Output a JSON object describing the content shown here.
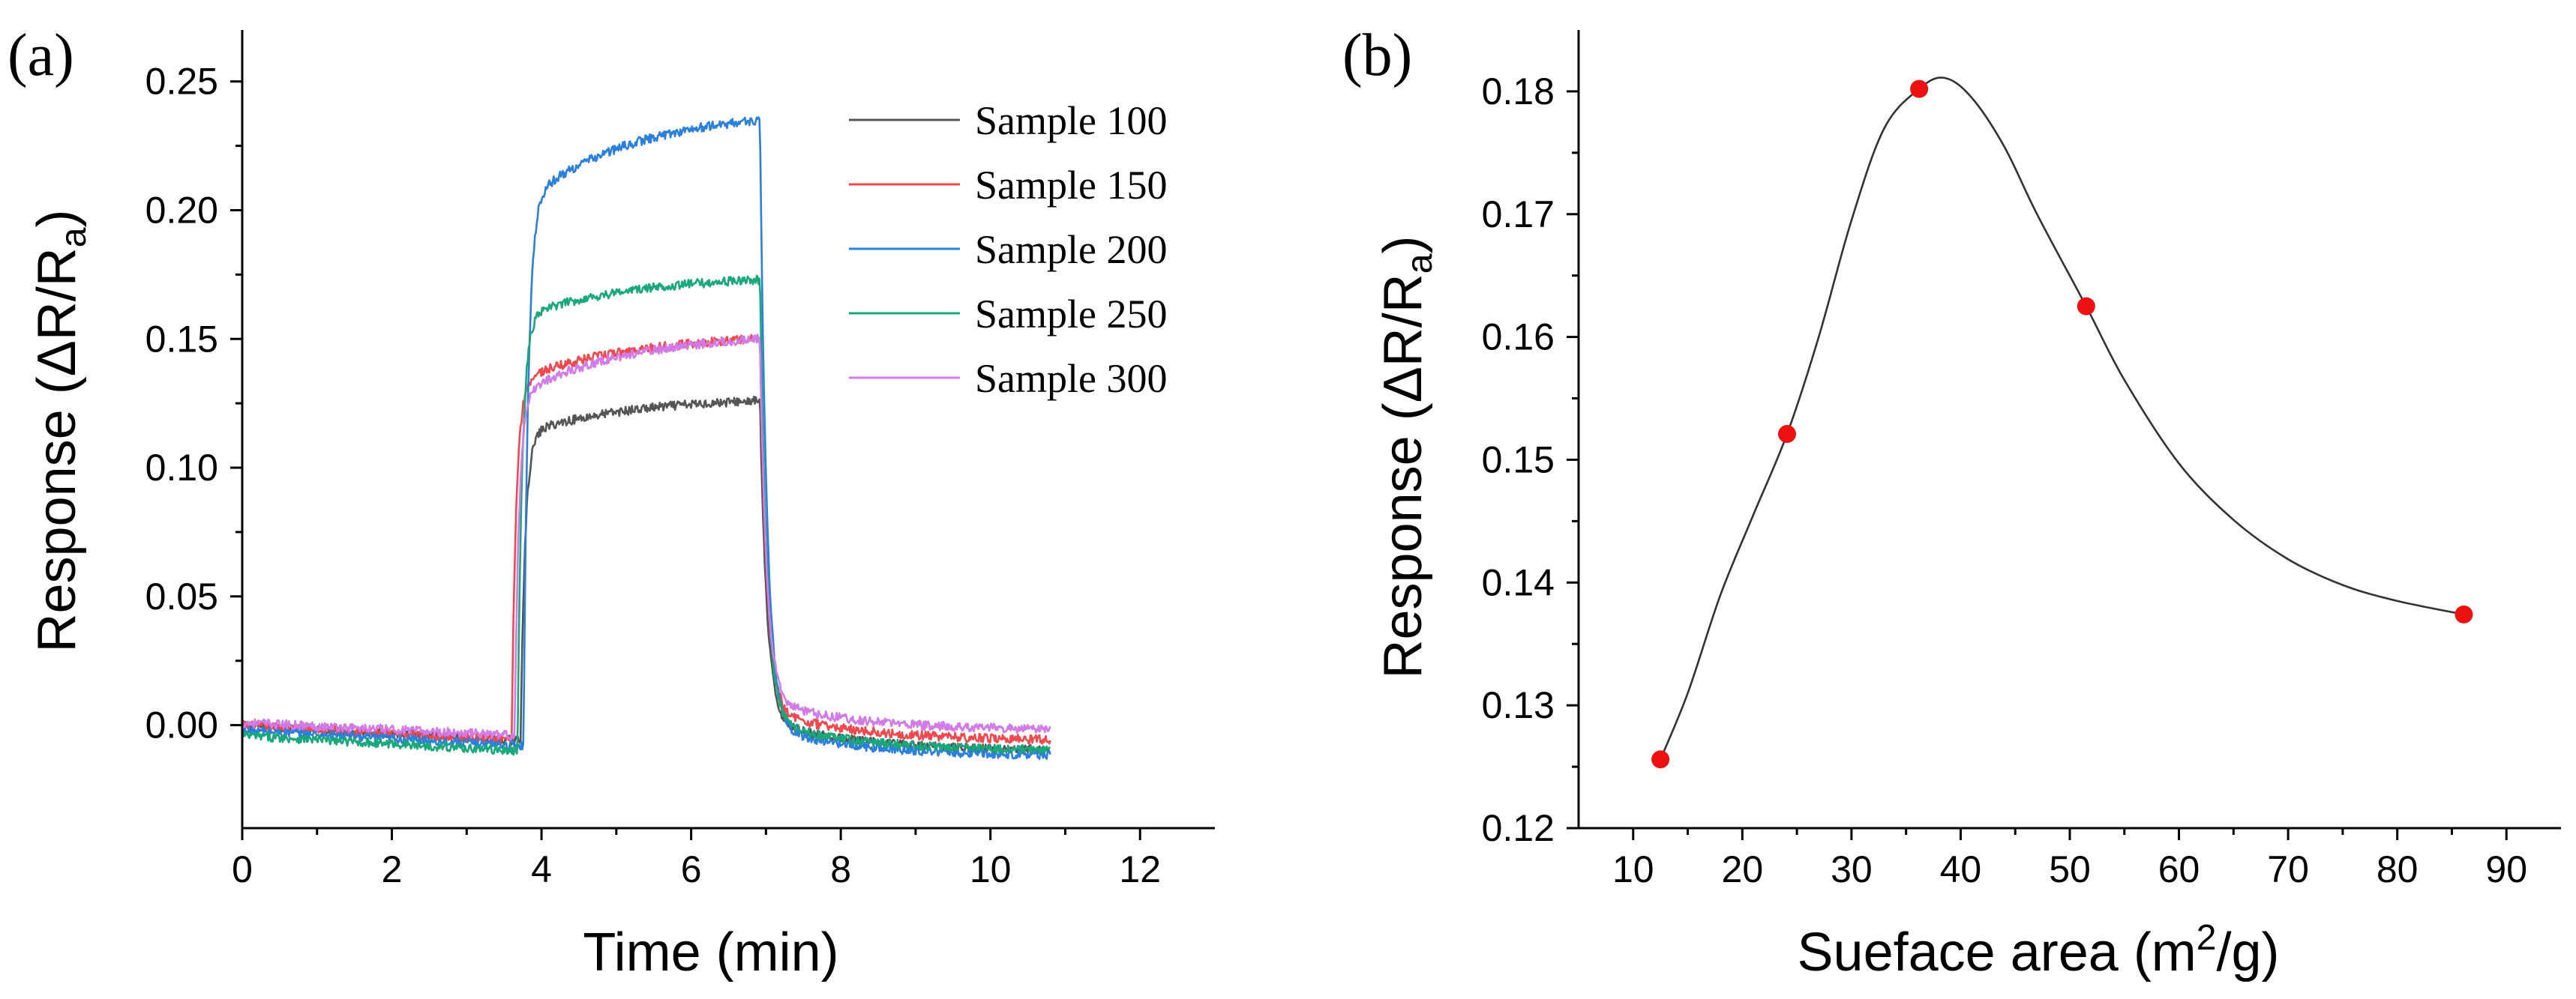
{
  "chart_data": [
    {
      "type": "line",
      "panel_label": "(a)",
      "xlabel": "Time (min)",
      "ylabel": {
        "prefix": "Response (ΔR/R",
        "sub": "a",
        "suffix": ")"
      },
      "xlim": [
        0,
        13
      ],
      "ylim": [
        -0.04,
        0.27
      ],
      "xticks": [
        0,
        2,
        4,
        6,
        8,
        10,
        12
      ],
      "yticks": [
        0.0,
        0.05,
        0.1,
        0.15,
        0.2,
        0.25
      ],
      "xtick_labels": [
        "0",
        "2",
        "4",
        "6",
        "8",
        "10",
        "12"
      ],
      "ytick_labels": [
        "0.00",
        "0.05",
        "0.10",
        "0.15",
        "0.20",
        "0.25"
      ],
      "legend_position": "top-right",
      "series": [
        {
          "name": "Sample 100",
          "color": "#555555",
          "start": 3.72,
          "stop": 6.92,
          "baseline_start": 0.0,
          "baseline_end": -0.006,
          "sat_initial": 0.113,
          "sat_final": 0.126,
          "recovery_end": -0.01,
          "end": 10.8
        },
        {
          "name": "Sample 150",
          "color": "#f0484e",
          "start": 3.6,
          "stop": 6.92,
          "baseline_start": 0.0,
          "baseline_end": -0.006,
          "sat_initial": 0.133,
          "sat_final": 0.15,
          "recovery_end": -0.006,
          "end": 10.8
        },
        {
          "name": "Sample 200",
          "color": "#2b7fdd",
          "start": 3.76,
          "stop": 6.92,
          "baseline_start": -0.002,
          "baseline_end": -0.008,
          "sat_initial": 0.203,
          "sat_final": 0.235,
          "recovery_end": -0.012,
          "end": 10.8
        },
        {
          "name": "Sample 250",
          "color": "#19a87a",
          "start": 3.68,
          "stop": 6.92,
          "baseline_start": -0.004,
          "baseline_end": -0.01,
          "sat_initial": 0.158,
          "sat_final": 0.173,
          "recovery_end": -0.01,
          "end": 10.8
        },
        {
          "name": "Sample 300",
          "color": "#d27ae8",
          "start": 3.64,
          "stop": 6.92,
          "baseline_start": 0.001,
          "baseline_end": -0.004,
          "sat_initial": 0.128,
          "sat_final": 0.15,
          "recovery_end": -0.002,
          "end": 10.8
        }
      ]
    },
    {
      "type": "scatter",
      "panel_label": "(b)",
      "xlabel": {
        "prefix": "Sueface area (m",
        "sup": "2",
        "suffix": "/g)"
      },
      "ylabel": {
        "prefix": "Response (ΔR/R",
        "sub": "a",
        "suffix": ")"
      },
      "xlim": [
        5,
        95
      ],
      "ylim": [
        0.12,
        0.185
      ],
      "xticks": [
        10,
        20,
        30,
        40,
        50,
        60,
        70,
        80,
        90
      ],
      "yticks": [
        0.12,
        0.13,
        0.14,
        0.15,
        0.16,
        0.17,
        0.18
      ],
      "xtick_labels": [
        "10",
        "20",
        "30",
        "40",
        "50",
        "60",
        "70",
        "80",
        "90"
      ],
      "ytick_labels": [
        "0.12",
        "0.13",
        "0.14",
        "0.15",
        "0.16",
        "0.17",
        "0.18"
      ],
      "points": [
        {
          "x": 12.5,
          "y": 0.1256
        },
        {
          "x": 24.1,
          "y": 0.1521
        },
        {
          "x": 36.2,
          "y": 0.1802
        },
        {
          "x": 51.5,
          "y": 0.1625
        },
        {
          "x": 86.1,
          "y": 0.1374
        }
      ],
      "marker_color": "#ee1111",
      "fit_curve": {
        "color": "#333333",
        "x": [
          12.5,
          15,
          18,
          21,
          24.1,
          27,
          30,
          33,
          36.2,
          38.5,
          41,
          44,
          47,
          51.5,
          55,
          60,
          65,
          70,
          75,
          80,
          86.1
        ],
        "y": [
          0.1256,
          0.131,
          0.139,
          0.1455,
          0.1521,
          0.16,
          0.1695,
          0.177,
          0.1802,
          0.1811,
          0.1795,
          0.1755,
          0.17,
          0.1625,
          0.1565,
          0.1497,
          0.1451,
          0.1419,
          0.1398,
          0.1385,
          0.1374
        ]
      }
    }
  ]
}
